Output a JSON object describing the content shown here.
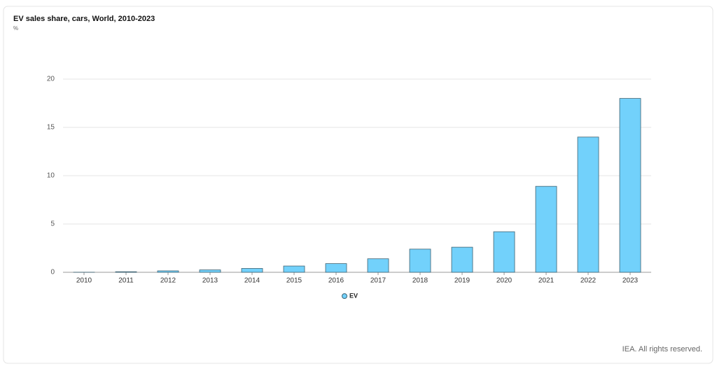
{
  "chart_data": {
    "type": "bar",
    "title": "EV sales share, cars, World, 2010-2023",
    "subtitle": "%",
    "categories": [
      "2010",
      "2011",
      "2012",
      "2013",
      "2014",
      "2015",
      "2016",
      "2017",
      "2018",
      "2019",
      "2020",
      "2021",
      "2022",
      "2023"
    ],
    "series": [
      {
        "name": "EV",
        "color": "#72d1fb",
        "values": [
          0.01,
          0.06,
          0.15,
          0.25,
          0.4,
          0.65,
          0.9,
          1.4,
          2.4,
          2.6,
          4.2,
          8.9,
          14,
          18
        ]
      }
    ],
    "ylim": [
      0,
      20
    ],
    "yticks": [
      0,
      5,
      10,
      15,
      20
    ],
    "grid": true,
    "legend": "bottom",
    "footer": "IEA. All rights reserved."
  }
}
